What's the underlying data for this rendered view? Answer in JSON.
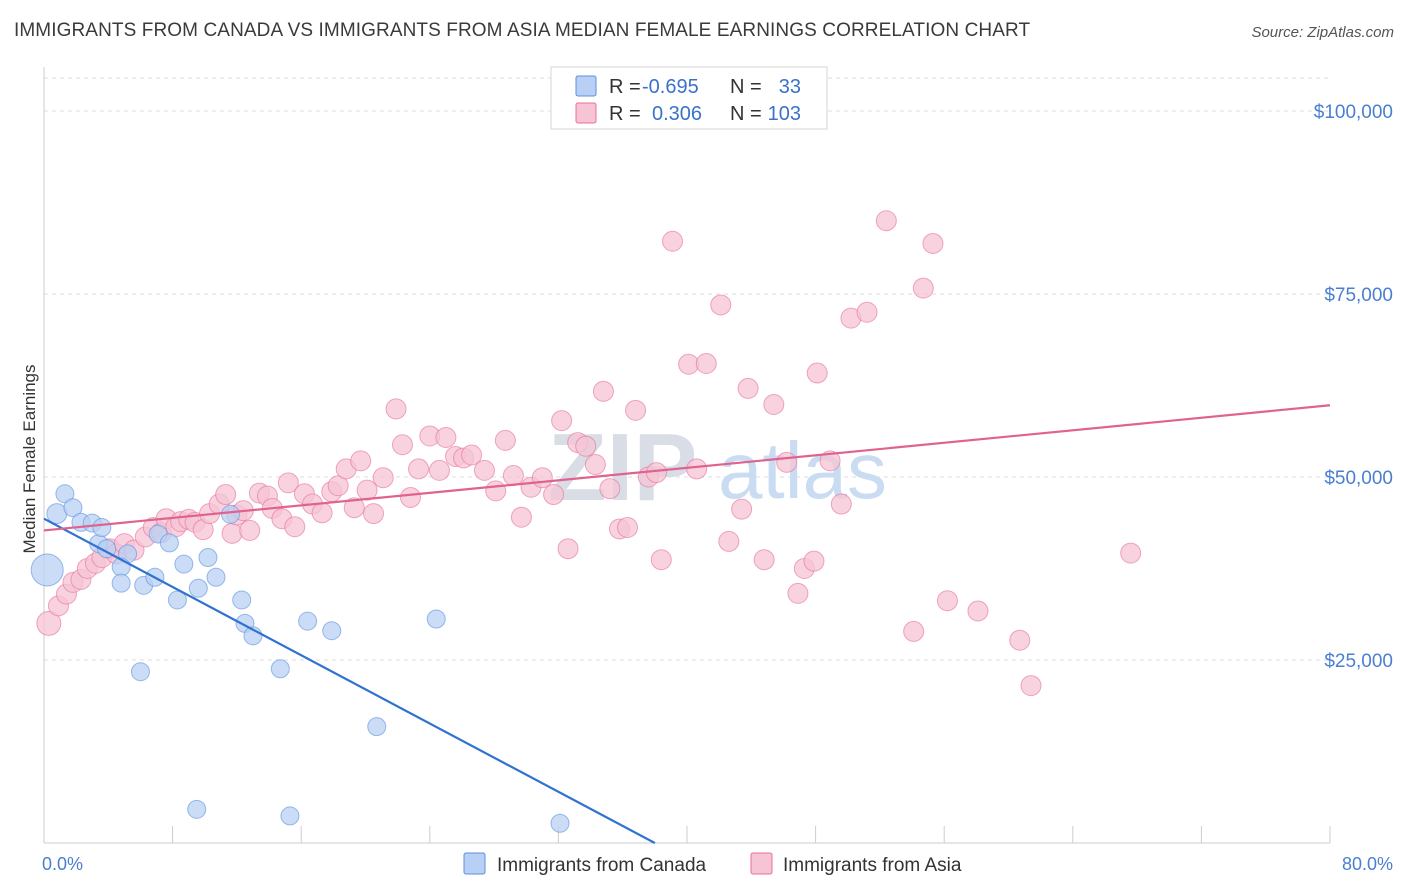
{
  "title": "IMMIGRANTS FROM CANADA VS IMMIGRANTS FROM ASIA MEDIAN FEMALE EARNINGS CORRELATION CHART",
  "source": "Source: ZipAtlas.com",
  "watermark": {
    "zip": "ZIP",
    "atlas": "atlas"
  },
  "legend": {
    "r_label": "R =",
    "n_label": "N =",
    "canada": {
      "r": "-0.695",
      "n": "33"
    },
    "asia": {
      "r": "0.306",
      "n": "103"
    }
  },
  "colors": {
    "canada": "#5b8fe0",
    "canada_fill": "#b8d0f3",
    "asia": "#e6709a",
    "asia_fill": "#f6c4d4",
    "tick": "#4a7fd0",
    "grid": "#dddddd"
  },
  "chart_data": {
    "type": "scatter",
    "xlabel": "",
    "ylabel": "Median Female Earnings",
    "xlim": [
      0,
      80
    ],
    "ylim": [
      0,
      104500
    ],
    "x_tick_labels": [
      "0.0%",
      "80.0%"
    ],
    "y_ticks": [
      25000,
      50000,
      75000,
      100000
    ],
    "y_tick_labels": [
      "$25,000",
      "$50,000",
      "$75,000",
      "$100,000"
    ],
    "series": [
      {
        "name": "Immigrants from Canada",
        "color": "#5b8fe0",
        "trend": {
          "x": [
            0,
            38
          ],
          "y": [
            44300,
            0
          ]
        },
        "points": [
          [
            0.2,
            37300,
            16
          ],
          [
            0.8,
            45000,
            10
          ],
          [
            1.3,
            47700,
            9
          ],
          [
            1.8,
            45800,
            9
          ],
          [
            2.3,
            43800,
            9
          ],
          [
            3.0,
            43700,
            9
          ],
          [
            3.4,
            40900,
            9
          ],
          [
            3.6,
            43100,
            9
          ],
          [
            3.9,
            40200,
            9
          ],
          [
            5.2,
            39500,
            9
          ],
          [
            4.8,
            37700,
            9
          ],
          [
            4.8,
            35500,
            9
          ],
          [
            6.2,
            35200,
            9
          ],
          [
            6.9,
            36300,
            9
          ],
          [
            7.1,
            42200,
            9
          ],
          [
            7.8,
            41000,
            9
          ],
          [
            8.3,
            33200,
            9
          ],
          [
            8.7,
            38100,
            9
          ],
          [
            9.6,
            34800,
            9
          ],
          [
            10.2,
            39000,
            9
          ],
          [
            10.7,
            36300,
            9
          ],
          [
            11.6,
            44900,
            9
          ],
          [
            12.3,
            33200,
            9
          ],
          [
            12.5,
            30000,
            9
          ],
          [
            13.0,
            28300,
            9
          ],
          [
            14.7,
            23800,
            9
          ],
          [
            16.4,
            30300,
            9
          ],
          [
            17.9,
            29000,
            9
          ],
          [
            20.7,
            15900,
            9
          ],
          [
            24.4,
            30600,
            9
          ],
          [
            6.0,
            23400,
            9
          ],
          [
            9.5,
            4600,
            9
          ],
          [
            15.3,
            3700,
            9
          ],
          [
            32.1,
            2700,
            9
          ]
        ]
      },
      {
        "name": "Immigrants from Asia",
        "color": "#e6709a",
        "trend": {
          "x": [
            0,
            80
          ],
          "y": [
            42700,
            59800
          ]
        },
        "points": [
          [
            0.3,
            30000,
            12
          ],
          [
            0.9,
            32400,
            10
          ],
          [
            1.4,
            34000,
            10
          ],
          [
            1.8,
            35600,
            10
          ],
          [
            2.3,
            36000,
            10
          ],
          [
            2.7,
            37500,
            10
          ],
          [
            3.2,
            38200,
            10
          ],
          [
            3.6,
            39000,
            10
          ],
          [
            4.1,
            40200,
            10
          ],
          [
            4.5,
            39500,
            10
          ],
          [
            5.0,
            40900,
            10
          ],
          [
            5.6,
            40000,
            10
          ],
          [
            6.3,
            41800,
            10
          ],
          [
            6.8,
            43100,
            10
          ],
          [
            7.3,
            42400,
            10
          ],
          [
            7.6,
            44300,
            10
          ],
          [
            8.2,
            43200,
            10
          ],
          [
            8.5,
            43900,
            10
          ],
          [
            9.0,
            44200,
            10
          ],
          [
            9.4,
            43800,
            10
          ],
          [
            9.9,
            42800,
            10
          ],
          [
            10.3,
            45000,
            10
          ],
          [
            10.9,
            46300,
            10
          ],
          [
            11.3,
            47600,
            10
          ],
          [
            11.7,
            42300,
            10
          ],
          [
            12.0,
            44800,
            10
          ],
          [
            12.4,
            45400,
            10
          ],
          [
            12.8,
            42700,
            10
          ],
          [
            13.4,
            47800,
            10
          ],
          [
            13.9,
            47400,
            10
          ],
          [
            14.2,
            45700,
            10
          ],
          [
            14.8,
            44300,
            10
          ],
          [
            15.2,
            49200,
            10
          ],
          [
            15.6,
            43200,
            10
          ],
          [
            16.2,
            47700,
            10
          ],
          [
            16.7,
            46300,
            10
          ],
          [
            17.3,
            45100,
            10
          ],
          [
            17.9,
            48000,
            10
          ],
          [
            18.3,
            48800,
            10
          ],
          [
            18.8,
            51100,
            10
          ],
          [
            19.3,
            45800,
            10
          ],
          [
            19.7,
            52200,
            10
          ],
          [
            20.1,
            48200,
            10
          ],
          [
            20.5,
            45000,
            10
          ],
          [
            21.1,
            49900,
            10
          ],
          [
            21.9,
            59300,
            10
          ],
          [
            22.3,
            54400,
            10
          ],
          [
            22.8,
            47200,
            10
          ],
          [
            23.3,
            51100,
            10
          ],
          [
            24.0,
            55600,
            10
          ],
          [
            24.6,
            50900,
            10
          ],
          [
            25.0,
            55400,
            10
          ],
          [
            25.6,
            52800,
            10
          ],
          [
            26.1,
            52600,
            10
          ],
          [
            26.6,
            53000,
            10
          ],
          [
            27.4,
            50900,
            10
          ],
          [
            28.1,
            48100,
            10
          ],
          [
            28.7,
            55000,
            10
          ],
          [
            29.2,
            50200,
            10
          ],
          [
            29.7,
            44500,
            10
          ],
          [
            30.3,
            48600,
            10
          ],
          [
            31.0,
            49900,
            10
          ],
          [
            31.7,
            47600,
            10
          ],
          [
            32.2,
            57700,
            10
          ],
          [
            32.6,
            40200,
            10
          ],
          [
            33.2,
            54700,
            10
          ],
          [
            33.7,
            54200,
            10
          ],
          [
            34.3,
            51700,
            10
          ],
          [
            34.8,
            61700,
            10
          ],
          [
            35.2,
            48400,
            10
          ],
          [
            35.8,
            42900,
            10
          ],
          [
            36.3,
            43100,
            10
          ],
          [
            36.8,
            59100,
            10
          ],
          [
            37.6,
            50000,
            10
          ],
          [
            38.1,
            50600,
            10
          ],
          [
            38.4,
            38700,
            10
          ],
          [
            39.1,
            82200,
            10
          ],
          [
            40.1,
            65400,
            10
          ],
          [
            40.6,
            51100,
            10
          ],
          [
            41.2,
            65500,
            10
          ],
          [
            42.1,
            73500,
            10
          ],
          [
            42.6,
            41200,
            10
          ],
          [
            43.4,
            45600,
            10
          ],
          [
            43.8,
            62100,
            10
          ],
          [
            44.8,
            38700,
            10
          ],
          [
            45.4,
            59900,
            10
          ],
          [
            46.2,
            52000,
            10
          ],
          [
            46.9,
            34100,
            10
          ],
          [
            47.3,
            37500,
            10
          ],
          [
            47.9,
            38500,
            10
          ],
          [
            48.1,
            64200,
            10
          ],
          [
            48.9,
            52200,
            10
          ],
          [
            49.6,
            46300,
            10
          ],
          [
            50.2,
            71700,
            10
          ],
          [
            51.2,
            72500,
            10
          ],
          [
            52.4,
            85000,
            10
          ],
          [
            54.1,
            28900,
            10
          ],
          [
            54.7,
            75800,
            10
          ],
          [
            55.3,
            81900,
            10
          ],
          [
            56.2,
            33100,
            10
          ],
          [
            58.1,
            31700,
            10
          ],
          [
            60.7,
            27700,
            10
          ],
          [
            61.4,
            21500,
            10
          ],
          [
            67.6,
            39600,
            10
          ]
        ]
      }
    ]
  },
  "bottom_legend": {
    "canada": "Immigrants from Canada",
    "asia": "Immigrants from Asia"
  }
}
